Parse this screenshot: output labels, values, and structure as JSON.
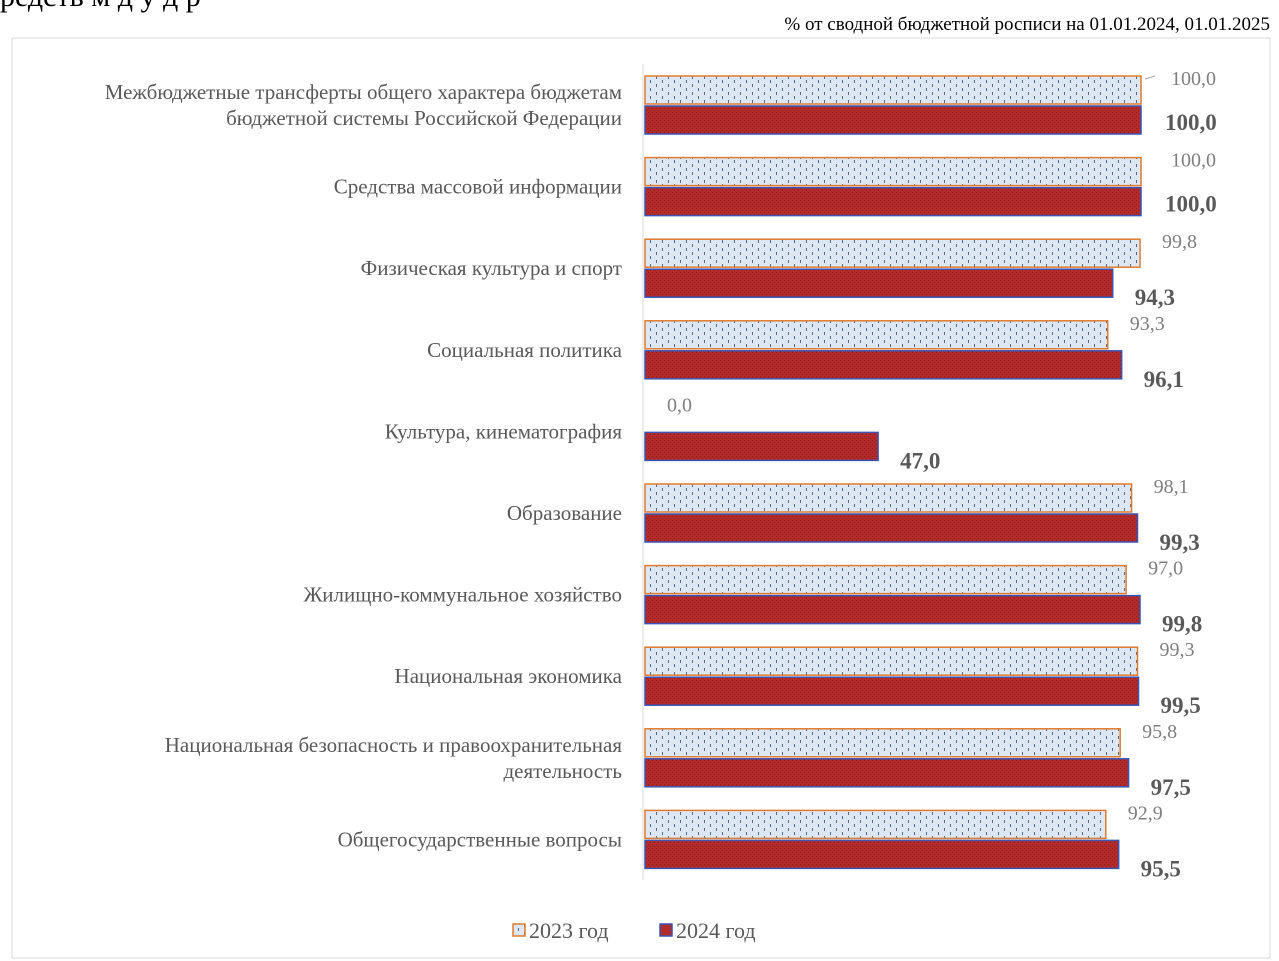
{
  "page": {
    "header_fragment": "редств         м   д             у    д  р",
    "unit_note": "% от сводной бюджетной росписи на 01.01.2024, 01.01.2025"
  },
  "colors": {
    "series_2023_fill": "#dde7f3",
    "series_2023_border": "#e07b2e",
    "series_2023_pattern": "#4f6a8a",
    "series_2024_fill": "#b22a2a",
    "series_2024_border": "#3a55b4",
    "label_2023": "#7f7f7f",
    "label_2024": "#595959",
    "category_text": "#595959",
    "axis": "#d9d9d9"
  },
  "chart_data": {
    "type": "bar",
    "orientation": "horizontal",
    "categories": [
      "Межбюджетные трансферты общего характера бюджетам бюджетной системы Российской Федерации",
      "Средства массовой информации",
      "Физическая культура и спорт",
      "Социальная политика",
      "Культура, кинематография",
      "Образование",
      "Жилищно-коммунальное хозяйство",
      "Национальная экономика",
      "Национальная безопасность и правоохранительная деятельность",
      "Общегосударственные вопросы"
    ],
    "category_lines": [
      [
        "Межбюджетные трансферты общего характера бюджетам",
        "бюджетной системы Российской Федерации"
      ],
      [
        "Средства массовой информации"
      ],
      [
        "Физическая культура и спорт"
      ],
      [
        "Социальная политика"
      ],
      [
        "Культура, кинематография"
      ],
      [
        "Образование"
      ],
      [
        "Жилищно-коммунальное хозяйство"
      ],
      [
        "Национальная экономика"
      ],
      [
        "Национальная безопасность и правоохранительная",
        "деятельность"
      ],
      [
        "Общегосударственные вопросы"
      ]
    ],
    "series": [
      {
        "name": "2023 год",
        "values": [
          100.0,
          100.0,
          99.8,
          93.3,
          0.0,
          98.1,
          97.0,
          99.3,
          95.8,
          92.9
        ],
        "labels": [
          "100,0",
          "100,0",
          "99,8",
          "93,3",
          "0,0",
          "98,1",
          "97,0",
          "99,3",
          "95,8",
          "92,9"
        ]
      },
      {
        "name": "2024 год",
        "values": [
          100.0,
          100.0,
          94.3,
          96.1,
          47.0,
          99.3,
          99.8,
          99.5,
          97.5,
          95.5
        ],
        "labels": [
          "100,0",
          "100,0",
          "94,3",
          "96,1",
          "47,0",
          "99,3",
          "99,8",
          "99,5",
          "97,5",
          "95,5"
        ]
      }
    ],
    "xlim": [
      0,
      100
    ],
    "grid": false,
    "legend_position": "bottom",
    "legend": [
      "2023 год",
      "2024 год"
    ]
  }
}
